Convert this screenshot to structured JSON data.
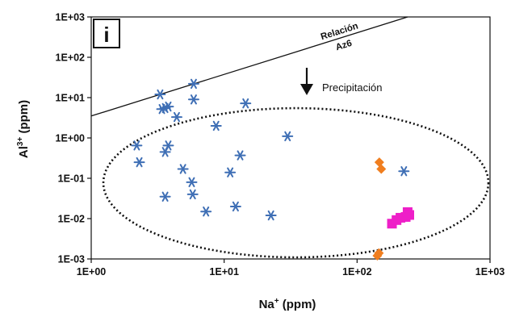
{
  "chart_data": {
    "type": "scatter",
    "panel_label": "i",
    "x_scale": "log",
    "y_scale": "log",
    "xlim": [
      1,
      1000
    ],
    "ylim": [
      0.001,
      1000
    ],
    "x_ticks": [
      {
        "value": 1,
        "label": "1E+00"
      },
      {
        "value": 10,
        "label": "1E+01"
      },
      {
        "value": 100,
        "label": "1E+02"
      },
      {
        "value": 1000,
        "label": "1E+03"
      }
    ],
    "y_ticks": [
      {
        "value": 0.001,
        "label": "1E-03"
      },
      {
        "value": 0.01,
        "label": "1E-02"
      },
      {
        "value": 0.1,
        "label": "1E-01"
      },
      {
        "value": 1,
        "label": "1E+00"
      },
      {
        "value": 10,
        "label": "1E+01"
      },
      {
        "value": 100,
        "label": "1E+02"
      },
      {
        "value": 1000,
        "label": "1E+03"
      }
    ],
    "xlabel": {
      "base": "Na",
      "sup": "+",
      "unit": " (ppm)"
    },
    "ylabel": {
      "base": "Al",
      "sup": "3+",
      "unit": " (ppm)"
    },
    "grid": false,
    "series": [
      {
        "marker": "asterisk",
        "color": "#3f6fb5",
        "points": [
          [
            3.3,
            12
          ],
          [
            3.4,
            5.2
          ],
          [
            3.6,
            5.5
          ],
          [
            3.8,
            6.0
          ],
          [
            4.4,
            3.3
          ],
          [
            5.9,
            22
          ],
          [
            5.9,
            9.0
          ],
          [
            8.7,
            2.0
          ],
          [
            14.5,
            7.2
          ],
          [
            30,
            1.1
          ],
          [
            2.2,
            0.65
          ],
          [
            2.3,
            0.25
          ],
          [
            3.6,
            0.45
          ],
          [
            3.8,
            0.65
          ],
          [
            4.9,
            0.17
          ],
          [
            5.7,
            0.08
          ],
          [
            5.8,
            0.04
          ],
          [
            3.6,
            0.035
          ],
          [
            7.3,
            0.015
          ],
          [
            12.2,
            0.02
          ],
          [
            22.5,
            0.012
          ],
          [
            11.1,
            0.14
          ],
          [
            13.2,
            0.37
          ],
          [
            225,
            0.15
          ]
        ]
      },
      {
        "marker": "diamond",
        "color": "#f07e1f",
        "points": [
          [
            147,
            0.25
          ],
          [
            152,
            0.17
          ],
          [
            142,
            0.0012
          ],
          [
            146,
            0.0014
          ]
        ]
      },
      {
        "marker": "square",
        "color": "#ee1fc8",
        "points": [
          [
            183,
            0.0075
          ],
          [
            198,
            0.0092
          ],
          [
            212,
            0.0105
          ],
          [
            232,
            0.011
          ],
          [
            240,
            0.0145
          ],
          [
            247,
            0.0123
          ]
        ]
      }
    ],
    "reference_line": {
      "label_line1": "Relación",
      "label_line2": "Az6",
      "points": [
        [
          1,
          3.5
        ],
        [
          240,
          1000
        ]
      ]
    },
    "precipitation_annotation": "Precipitación",
    "ellipse": {
      "center": [
        40,
        0.06
      ],
      "x_range": [
        1.2,
        1000
      ],
      "y_range": [
        0.001,
        6
      ]
    }
  }
}
